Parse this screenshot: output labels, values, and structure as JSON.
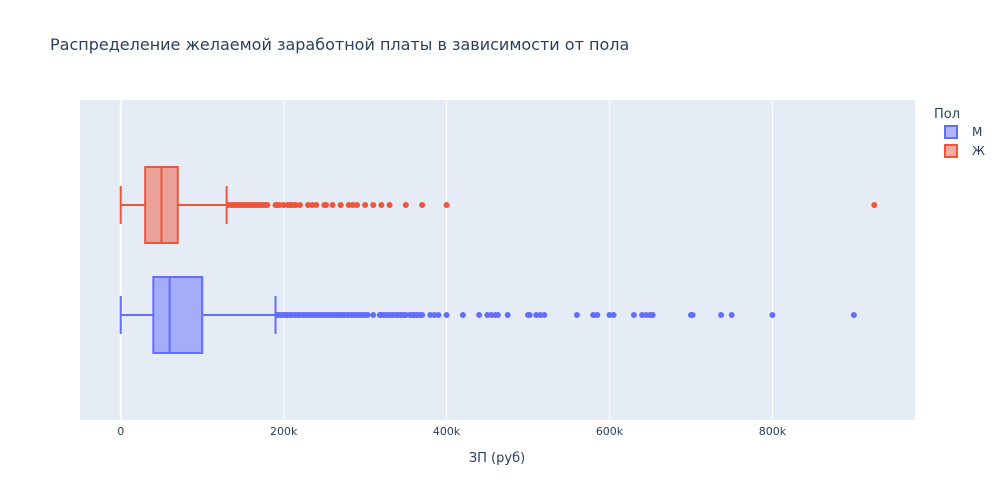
{
  "chart_data": {
    "type": "box",
    "orientation": "horizontal",
    "title": "Распределение желаемой заработной платы в зависимости от пола",
    "xlabel": "ЗП (руб)",
    "ylabel": "",
    "xlim": [
      -50000,
      975000
    ],
    "x_ticks": [
      0,
      200000,
      400000,
      600000,
      800000
    ],
    "x_tick_labels": [
      "0",
      "200k",
      "400k",
      "600k",
      "800k"
    ],
    "grid": true,
    "legend": {
      "title": "Пол",
      "placement": "top-right"
    },
    "background": "#e5ecf6",
    "series": [
      {
        "name": "М",
        "color": "#636efa",
        "fill": "rgba(99,110,250,0.5)",
        "lower_fence": 0,
        "q1": 40000,
        "median": 60000,
        "q3": 100000,
        "upper_fence": 190000,
        "outliers": [
          192000,
          195000,
          198000,
          200000,
          203000,
          205000,
          208000,
          210000,
          213000,
          215000,
          218000,
          220000,
          223000,
          225000,
          228000,
          230000,
          233000,
          235000,
          238000,
          240000,
          243000,
          245000,
          248000,
          250000,
          253000,
          255000,
          258000,
          260000,
          263000,
          265000,
          268000,
          270000,
          273000,
          275000,
          278000,
          280000,
          283000,
          285000,
          288000,
          290000,
          293000,
          295000,
          298000,
          300000,
          303000,
          310000,
          318000,
          320000,
          323000,
          325000,
          328000,
          330000,
          333000,
          335000,
          338000,
          340000,
          343000,
          345000,
          348000,
          350000,
          355000,
          358000,
          360000,
          363000,
          365000,
          368000,
          370000,
          380000,
          385000,
          390000,
          400000,
          420000,
          440000,
          450000,
          455000,
          460000,
          463000,
          475000,
          500000,
          502000,
          510000,
          515000,
          520000,
          560000,
          580000,
          585000,
          600000,
          605000,
          630000,
          640000,
          645000,
          650000,
          653000,
          700000,
          702000,
          737000,
          750000,
          800000,
          900000
        ]
      },
      {
        "name": "Ж",
        "color": "#ef553b",
        "fill": "rgba(239,85,59,0.5)",
        "lower_fence": 0,
        "q1": 30000,
        "median": 50000,
        "q3": 70000,
        "upper_fence": 130000,
        "outliers": [
          132000,
          135000,
          138000,
          140000,
          143000,
          145000,
          148000,
          150000,
          153000,
          155000,
          158000,
          160000,
          163000,
          165000,
          168000,
          170000,
          173000,
          175000,
          178000,
          180000,
          190000,
          192000,
          195000,
          200000,
          205000,
          208000,
          210000,
          213000,
          215000,
          220000,
          230000,
          235000,
          240000,
          250000,
          252000,
          260000,
          270000,
          280000,
          285000,
          290000,
          300000,
          310000,
          320000,
          330000,
          350000,
          370000,
          400000,
          925000
        ]
      }
    ]
  }
}
